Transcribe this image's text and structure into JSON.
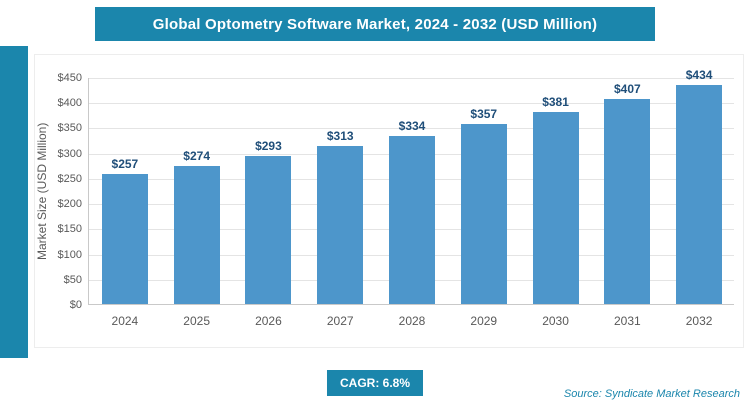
{
  "colors": {
    "accent": "#1b86ac",
    "bar": "#4d96cb",
    "data_label": "#1f4e79"
  },
  "header": {
    "title": "Global Optometry Software Market, 2024 - 2032 (USD Million)"
  },
  "chart_data": {
    "type": "bar",
    "title": "Global Optometry Software Market, 2024 - 2032 (USD Million)",
    "categories": [
      "2024",
      "2025",
      "2026",
      "2027",
      "2028",
      "2029",
      "2030",
      "2031",
      "2032"
    ],
    "values": [
      257,
      274,
      293,
      313,
      334,
      357,
      381,
      407,
      434
    ],
    "value_labels": [
      "$257",
      "$274",
      "$293",
      "$313",
      "$334",
      "$357",
      "$381",
      "$407",
      "$434"
    ],
    "xlabel": "",
    "ylabel": "Market Size (USD Million)",
    "ylim": [
      0,
      450
    ],
    "ytick_step": 50,
    "ytick_labels": [
      "$0",
      "$50",
      "$100",
      "$150",
      "$200",
      "$250",
      "$300",
      "$350",
      "$400",
      "$450"
    ],
    "grid": true,
    "legend": false
  },
  "footer": {
    "cagr_label": "CAGR: 6.8%",
    "source": "Source: Syndicate Market Research"
  }
}
